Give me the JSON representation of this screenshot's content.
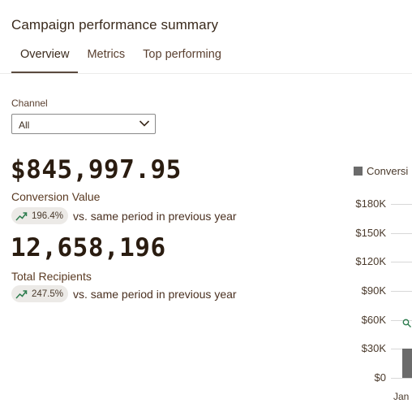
{
  "header": {
    "title": "Campaign performance summary"
  },
  "tabs": [
    {
      "label": "Overview",
      "active": true
    },
    {
      "label": "Metrics",
      "active": false
    },
    {
      "label": "Top performing",
      "active": false
    }
  ],
  "filter": {
    "label": "Channel",
    "value": "All"
  },
  "metrics": [
    {
      "value": "$845,997.95",
      "label": "Conversion Value",
      "change": "196.4%",
      "comparison": "vs. same period in previous year"
    },
    {
      "value": "12,658,196",
      "label": "Total Recipients",
      "change": "247.5%",
      "comparison": "vs. same period in previous year"
    }
  ],
  "chart_data": {
    "type": "bar",
    "series": [
      {
        "name": "Conversi",
        "values": [
          30000
        ]
      }
    ],
    "categories": [
      "Jan"
    ],
    "y_ticks": [
      "$180K",
      "$150K",
      "$120K",
      "$90K",
      "$60K",
      "$30K",
      "$0"
    ],
    "ylim": [
      0,
      180000
    ],
    "bar_color": "#6b6b6b",
    "grid": true,
    "legend": "top-left"
  },
  "colors": {
    "accent_underline": "#5a4a3e",
    "trend_up": "#2e7d4f",
    "pill_bg": "#eceae7"
  },
  "icons": {
    "trend": "trend-up-icon",
    "dropdown": "chevron-down-icon",
    "zoom": "magnifier-icon"
  }
}
